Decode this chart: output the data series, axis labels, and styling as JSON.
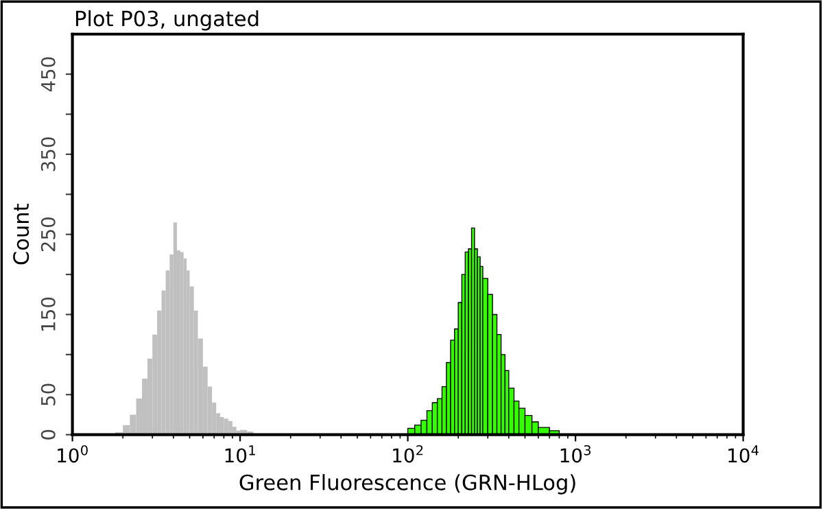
{
  "chart_data": {
    "type": "histogram",
    "title": "Plot P03, ungated",
    "xlabel": "Green Fluorescence (GRN-HLog)",
    "ylabel": "Count",
    "log": "x",
    "grid": false,
    "legend": false,
    "xlim": [
      1,
      10000
    ],
    "xticks": [
      {
        "value": 1,
        "label": "10$^{0}$"
      },
      {
        "value": 10,
        "label": "10$^{1}$"
      },
      {
        "value": 100,
        "label": "10$^{2}$"
      },
      {
        "value": 1000,
        "label": "10$^{3}$"
      },
      {
        "value": 10000,
        "label": "10$^{4}$"
      }
    ],
    "ylim": [
      0,
      500
    ],
    "yticks": [
      0,
      50,
      {
        "value": 100,
        "label": null
      },
      150,
      {
        "value": 200,
        "label": null
      },
      250,
      {
        "value": 300,
        "label": null
      },
      350,
      {
        "value": 400,
        "label": null
      },
      450
    ],
    "bins": [
      1.8,
      2.0,
      2.2,
      2.4,
      2.6,
      2.8,
      3.0,
      3.2,
      3.4,
      3.6,
      3.8,
      4.0,
      4.2,
      4.4,
      4.6,
      4.8,
      5.0,
      5.3,
      5.6,
      6.0,
      6.4,
      6.8,
      7.2,
      7.6,
      8.0,
      8.5,
      9.0,
      9.5,
      10,
      11,
      12,
      100,
      110,
      120,
      130,
      140,
      150,
      160,
      170,
      180,
      190,
      200,
      210,
      220,
      230,
      240,
      250,
      260,
      270,
      280,
      300,
      320,
      340,
      360,
      380,
      400,
      430,
      460,
      500,
      550,
      600,
      700,
      800
    ],
    "series": [
      {
        "color": "#c0c0c0",
        "values": [
          3,
          12,
          25,
          45,
          70,
          95,
          125,
          155,
          180,
          205,
          225,
          265,
          230,
          228,
          220,
          205,
          185,
          155,
          120,
          85,
          60,
          40,
          27,
          22,
          20,
          17,
          10,
          5,
          6,
          4,
          null,
          null,
          null,
          null,
          null,
          null,
          null,
          null,
          null,
          null,
          null,
          null,
          null,
          null,
          null,
          null,
          null,
          null,
          null,
          null,
          null,
          null,
          null,
          null,
          null,
          null,
          null,
          null,
          null,
          null,
          null,
          null
        ]
      },
      {
        "color": "#33ff00",
        "values": [
          null,
          null,
          null,
          null,
          null,
          null,
          null,
          null,
          null,
          null,
          null,
          null,
          null,
          null,
          null,
          null,
          null,
          null,
          null,
          null,
          null,
          null,
          null,
          null,
          null,
          null,
          null,
          null,
          null,
          null,
          null,
          8,
          12,
          18,
          30,
          40,
          45,
          60,
          90,
          118,
          132,
          165,
          200,
          228,
          232,
          258,
          232,
          222,
          210,
          195,
          175,
          150,
          125,
          100,
          80,
          58,
          42,
          33,
          24,
          16,
          9,
          5
        ]
      }
    ]
  }
}
